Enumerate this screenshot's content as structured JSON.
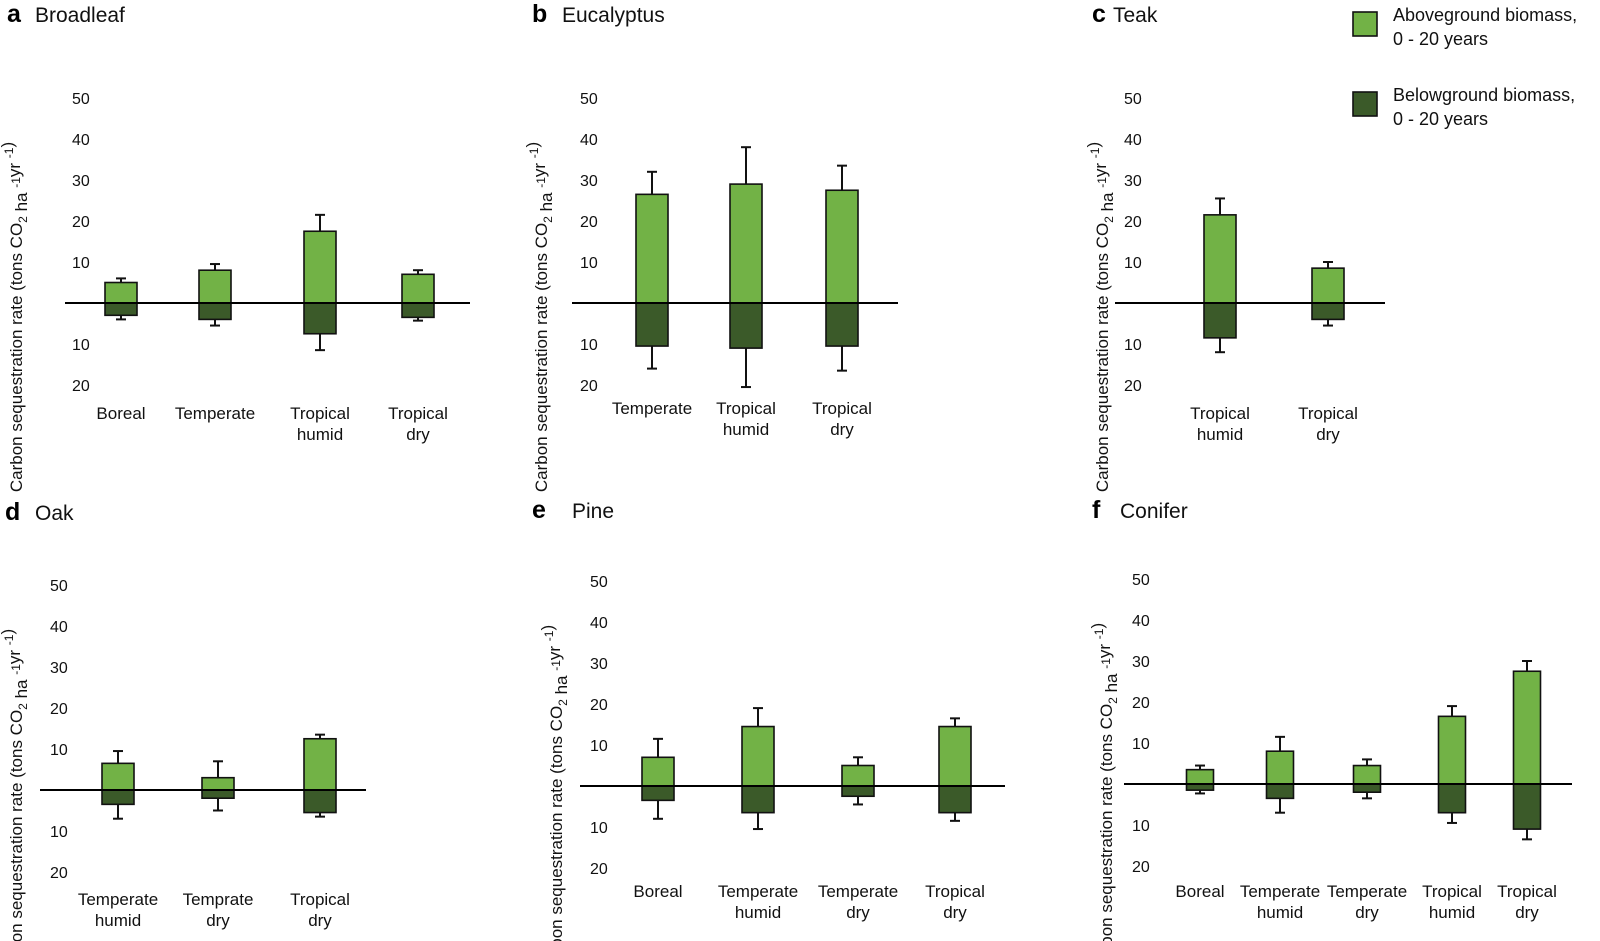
{
  "colors": {
    "above": "#72b246",
    "below": "#3b5a29",
    "outline": "#111111"
  },
  "y_axis_label": {
    "pre": "Carbon sequestration rate (tons CO",
    "sub": "2",
    "mid1": " ha ",
    "sup1": "-1",
    "mid2": "yr ",
    "sup2": "-1",
    "post": ")"
  },
  "legend": [
    {
      "key": "above",
      "label_lines": [
        "Aboveground biomass,",
        "0 - 20 years"
      ]
    },
    {
      "key": "below",
      "label_lines": [
        "Belowground biomass,",
        "0 - 20 years"
      ]
    }
  ],
  "chart_data": [
    {
      "type": "bar",
      "letter": "a",
      "title": "Broadleaf",
      "tick_labels_up": [
        "10",
        "20",
        "30",
        "40",
        "50"
      ],
      "tick_labels_down": [
        "10",
        "20"
      ],
      "ylim": [
        -20,
        50
      ],
      "categories": [
        [
          "Boreal"
        ],
        [
          "Temperate"
        ],
        [
          "Tropical",
          "humid"
        ],
        [
          "Tropical",
          "dry"
        ]
      ],
      "series": [
        {
          "name": "Aboveground biomass, 0 - 20 years",
          "values": [
            5,
            8,
            17.5,
            7
          ],
          "error": [
            1,
            1.5,
            4,
            1
          ]
        },
        {
          "name": "Belowground biomass, 0 - 20 years",
          "values": [
            -3,
            -4,
            -7.5,
            -3.5
          ],
          "error": [
            1,
            1.5,
            4,
            0.8
          ]
        }
      ]
    },
    {
      "type": "bar",
      "letter": "b",
      "title": "Eucalyptus",
      "tick_labels_up": [
        "10",
        "20",
        "30",
        "40",
        "50"
      ],
      "tick_labels_down": [
        "10",
        "20"
      ],
      "ylim": [
        -20,
        50
      ],
      "categories": [
        [
          "Temperate"
        ],
        [
          "Tropical",
          "humid"
        ],
        [
          "Tropical",
          "dry"
        ]
      ],
      "series": [
        {
          "name": "Aboveground biomass, 0 - 20 years",
          "values": [
            26.5,
            29,
            27.5
          ],
          "error": [
            5.5,
            9,
            6
          ]
        },
        {
          "name": "Belowground biomass, 0 - 20 years",
          "values": [
            -10.5,
            -11,
            -10.5
          ],
          "error": [
            5.5,
            9.5,
            6
          ]
        }
      ]
    },
    {
      "type": "bar",
      "letter": "c",
      "title": "Teak",
      "tick_labels_up": [
        "10",
        "20",
        "30",
        "40",
        "50"
      ],
      "tick_labels_down": [
        "10",
        "20"
      ],
      "ylim": [
        -20,
        50
      ],
      "categories": [
        [
          "Tropical",
          "humid"
        ],
        [
          "Tropical",
          "dry"
        ]
      ],
      "series": [
        {
          "name": "Aboveground biomass, 0 - 20 years",
          "values": [
            21.5,
            8.5
          ],
          "error": [
            4,
            1.5
          ]
        },
        {
          "name": "Belowground biomass, 0 - 20 years",
          "values": [
            -8.5,
            -4
          ],
          "error": [
            3.5,
            1.5
          ]
        }
      ]
    },
    {
      "type": "bar",
      "letter": "d",
      "title": "Oak",
      "tick_labels_up": [
        "10",
        "20",
        "30",
        "40",
        "50"
      ],
      "tick_labels_down": [
        "10",
        "20"
      ],
      "ylim": [
        -20,
        50
      ],
      "categories": [
        [
          "Temperate",
          "humid"
        ],
        [
          "Temprate",
          "dry"
        ],
        [
          "Tropical",
          "dry"
        ]
      ],
      "series": [
        {
          "name": "Aboveground biomass, 0 - 20 years",
          "values": [
            6.5,
            3,
            12.5
          ],
          "error": [
            3,
            4,
            1
          ]
        },
        {
          "name": "Belowground biomass, 0 - 20 years",
          "values": [
            -3.5,
            -2,
            -5.5
          ],
          "error": [
            3.5,
            3,
            1
          ]
        }
      ]
    },
    {
      "type": "bar",
      "letter": "e",
      "title": "Pine",
      "tick_labels_up": [
        "10",
        "20",
        "30",
        "40",
        "50"
      ],
      "tick_labels_down": [
        "10",
        "20"
      ],
      "ylim": [
        -20,
        50
      ],
      "categories": [
        [
          "Boreal"
        ],
        [
          "Temperate",
          "humid"
        ],
        [
          "Temperate",
          "dry"
        ],
        [
          "Tropical",
          "dry"
        ]
      ],
      "series": [
        {
          "name": "Aboveground biomass, 0 - 20 years",
          "values": [
            7,
            14.5,
            5,
            14.5
          ],
          "error": [
            4.5,
            4.5,
            2,
            2
          ]
        },
        {
          "name": "Belowground biomass, 0 - 20 years",
          "values": [
            -3.5,
            -6.5,
            -2.5,
            -6.5
          ],
          "error": [
            4.5,
            4,
            2,
            2
          ]
        }
      ]
    },
    {
      "type": "bar",
      "letter": "f",
      "title": "Conifer",
      "tick_labels_up": [
        "10",
        "20",
        "30",
        "40",
        "50"
      ],
      "tick_labels_down": [
        "10",
        "20"
      ],
      "ylim": [
        -20,
        50
      ],
      "categories": [
        [
          "Boreal"
        ],
        [
          "Temperate",
          "humid"
        ],
        [
          "Temperate",
          "dry"
        ],
        [
          "Tropical",
          "humid"
        ],
        [
          "Tropical",
          "dry"
        ]
      ],
      "series": [
        {
          "name": "Aboveground biomass, 0 - 20 years",
          "values": [
            3.5,
            8,
            4.5,
            16.5,
            27.5
          ],
          "error": [
            1,
            3.5,
            1.5,
            2.5,
            2.5
          ]
        },
        {
          "name": "Belowground biomass, 0 - 20 years",
          "values": [
            -1.5,
            -3.5,
            -2,
            -7,
            -11
          ],
          "error": [
            0.8,
            3.5,
            1.5,
            2.5,
            2.5
          ]
        }
      ]
    }
  ]
}
